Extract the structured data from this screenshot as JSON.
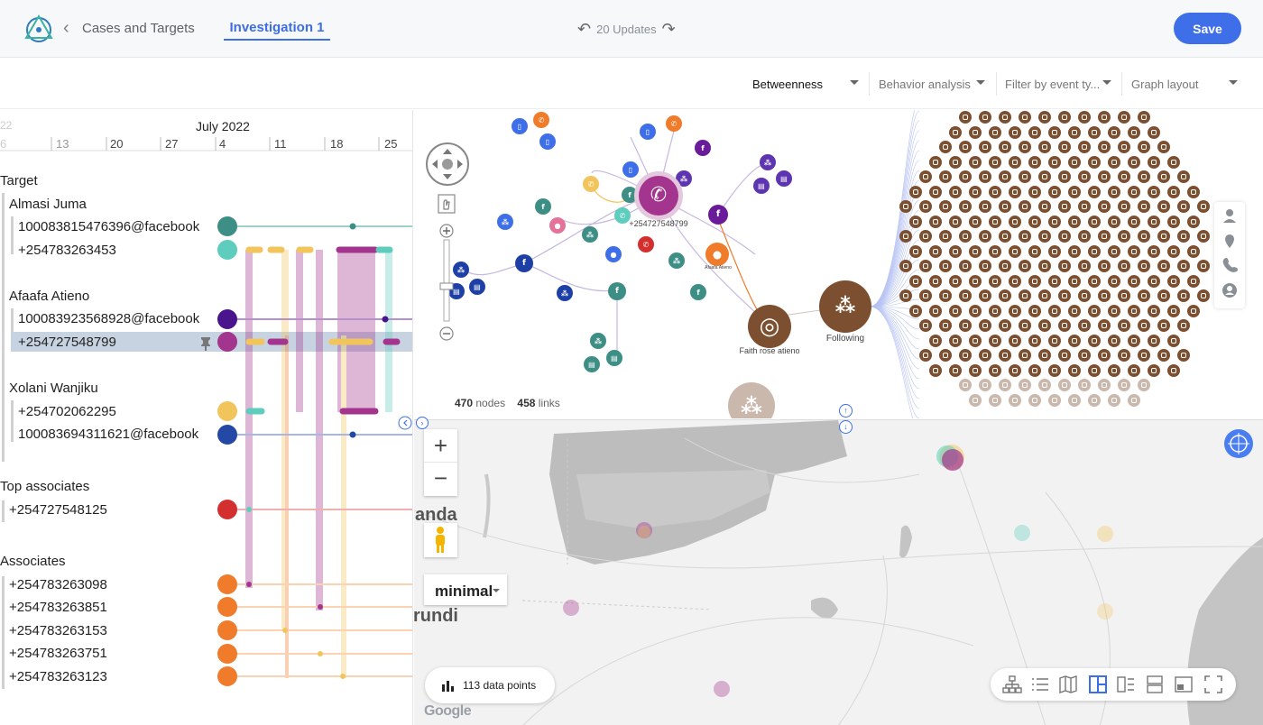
{
  "header": {
    "breadcrumb": "Cases and Targets",
    "tab": "Investigation 1",
    "updates": "20 Updates",
    "save_label": "Save"
  },
  "filters": {
    "betweenness": "Betweenness",
    "behavior": "Behavior analysis",
    "event_type": "Filter by event ty...",
    "layout": "Graph layout"
  },
  "timeline": {
    "month": "July 2022",
    "ticks": [
      "13",
      "20",
      "27",
      "4",
      "11",
      "18",
      "25"
    ],
    "sections": [
      {
        "title": "Target",
        "people": [
          {
            "name": "Almasi Juma",
            "ids": [
              {
                "label": "100083815476396@facebook",
                "color": "#3d8e84"
              },
              {
                "label": "+254783263453",
                "color": "#5ecdbd"
              }
            ]
          },
          {
            "name": "Afaafa Atieno",
            "ids": [
              {
                "label": "100083923568928@facebook",
                "color": "#4a148c"
              },
              {
                "label": "+254727548799",
                "color": "#a3358e"
              }
            ]
          },
          {
            "name": "Xolani Wanjiku",
            "ids": [
              {
                "label": "+254702062295",
                "color": "#f2c55c"
              },
              {
                "label": "100083694311621@facebook",
                "color": "#2348a6"
              }
            ]
          }
        ]
      },
      {
        "title": "Top associates",
        "items": [
          {
            "label": "+254727548125",
            "color": "#d32f2f"
          }
        ]
      },
      {
        "title": "Associates",
        "items": [
          {
            "label": "+254783263098",
            "color": "#f07b2b"
          },
          {
            "label": "+254783263851",
            "color": "#f07b2b"
          },
          {
            "label": "+254783263153",
            "color": "#f07b2b"
          },
          {
            "label": "+254783263751",
            "color": "#f07b2b"
          },
          {
            "label": "+254783263123",
            "color": "#f07b2b"
          }
        ]
      }
    ]
  },
  "graph": {
    "nodes_count": "470",
    "nodes_label": "nodes",
    "links_count": "458",
    "links_label": "links",
    "center_label": "+254727548799",
    "afaafa_label": "Afaafa Atieno",
    "instagram_label": "Faith rose atieno",
    "following_label": "Following"
  },
  "map": {
    "style": "minimal",
    "data_points": "113 data points",
    "label_uganda": "anda",
    "label_burundi": "rundi",
    "google": "Google"
  },
  "colors": {
    "accent": "#3f6fe8",
    "brown": "#7b4f2f"
  }
}
